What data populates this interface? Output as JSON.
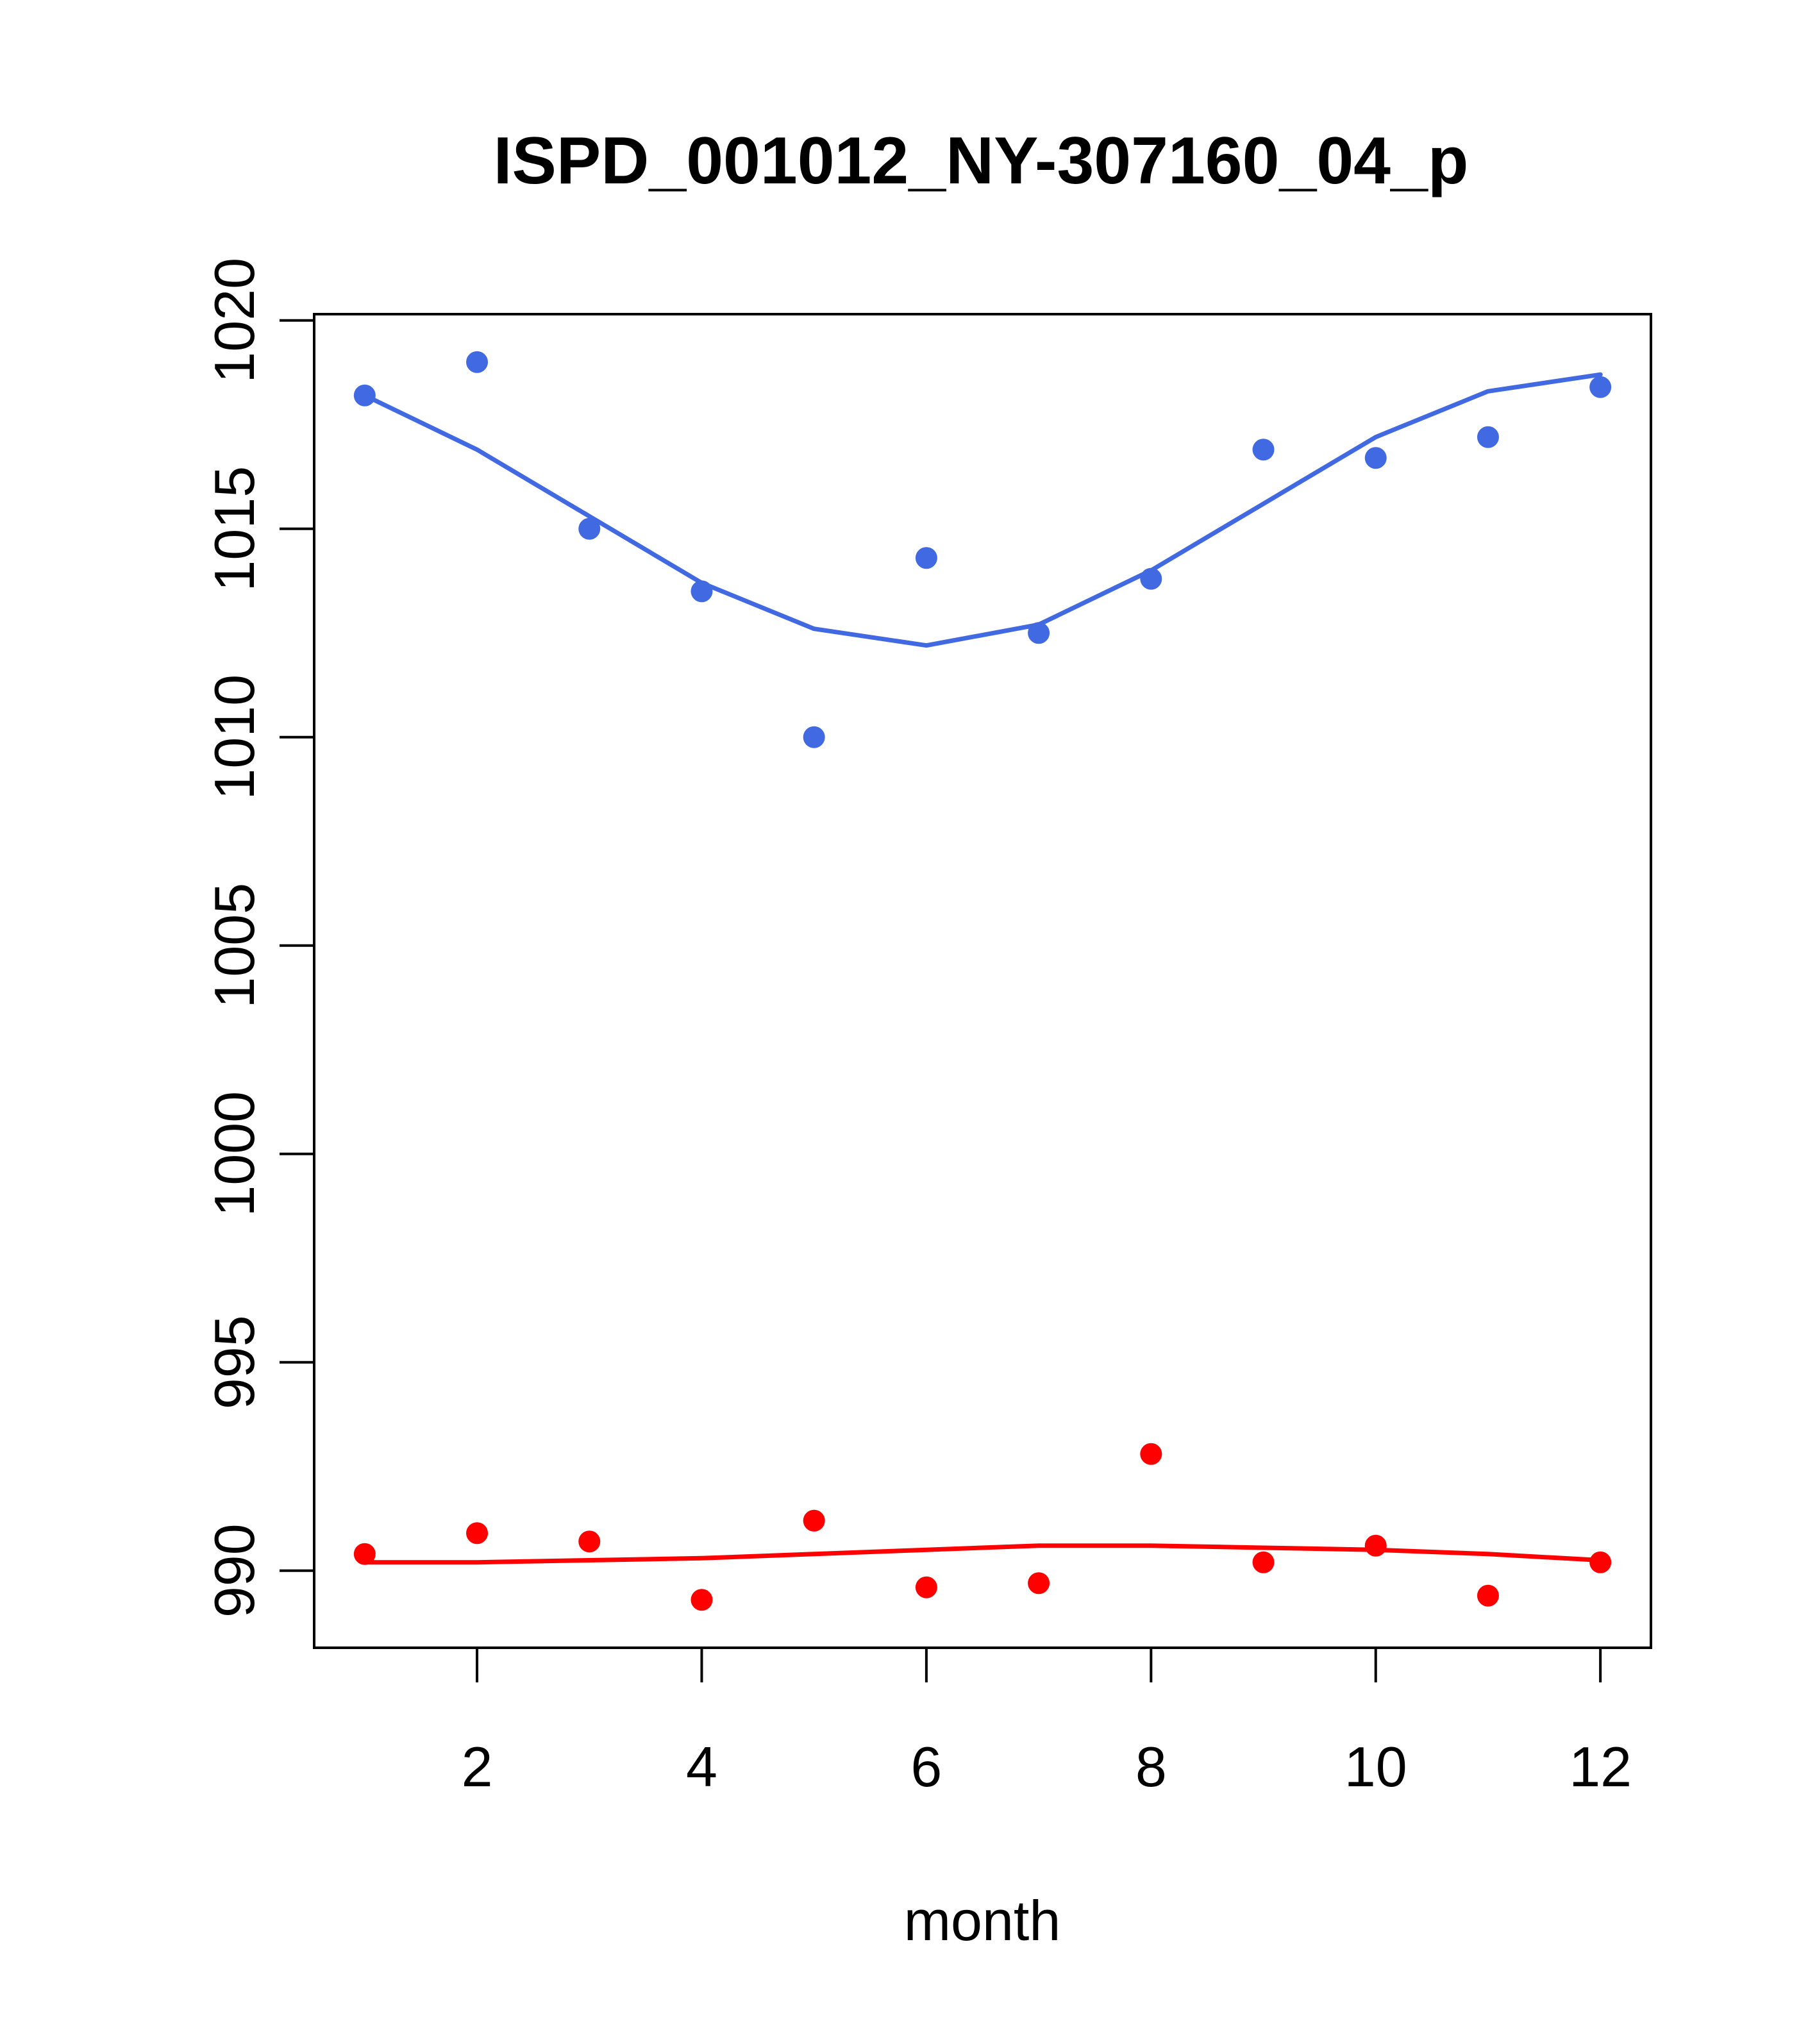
{
  "chart_data": {
    "type": "scatter",
    "title": "ISPD_001012_NY-307160_04_p",
    "xlabel": "month",
    "ylabel": "",
    "xlim": [
      0.55,
      12.45
    ],
    "ylim": [
      988.15,
      1020.15
    ],
    "x_ticks": [
      "2",
      "4",
      "6",
      "8",
      "10",
      "12"
    ],
    "y_ticks": [
      "990",
      "995",
      "1000",
      "1005",
      "1010",
      "1015",
      "1020"
    ],
    "grid": false,
    "x": [
      1,
      2,
      3,
      4,
      5,
      6,
      7,
      8,
      9,
      10,
      11,
      12
    ],
    "series": [
      {
        "color": "#4169e1",
        "points": [
          1018.2,
          1019.0,
          1015.0,
          1013.5,
          1010.0,
          1014.3,
          1012.5,
          1013.8,
          1016.9,
          1016.7,
          1017.2,
          1018.4
        ],
        "smooth": [
          1018.2,
          1016.9,
          1015.3,
          1013.7,
          1012.6,
          1012.2,
          1012.7,
          1014.0,
          1015.6,
          1017.2,
          1018.3,
          1018.7
        ]
      },
      {
        "color": "#ff0000",
        "points": [
          990.4,
          990.9,
          990.7,
          989.3,
          991.2,
          989.6,
          989.7,
          992.8,
          990.2,
          990.6,
          989.4,
          990.2
        ],
        "smooth": [
          990.2,
          990.2,
          990.25,
          990.3,
          990.4,
          990.5,
          990.6,
          990.6,
          990.55,
          990.5,
          990.4,
          990.25
        ]
      }
    ]
  }
}
